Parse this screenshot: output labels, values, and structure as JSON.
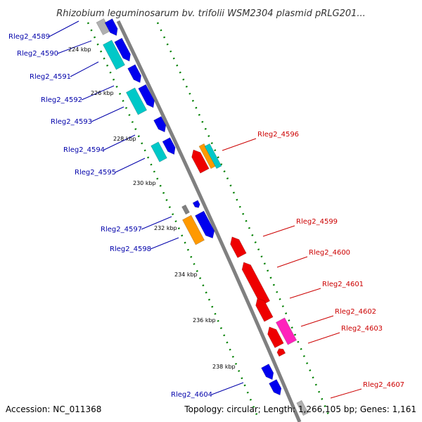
{
  "title": "Rhizobium leguminosarum bv. trifolii WSM2304 plasmid pRLG201...",
  "footer": {
    "accession": "Accession: NC_011368",
    "topology": "Topology: circular; Length: 1,266,105 bp; Genes: 1,161"
  },
  "colors": {
    "backbone": "#808080",
    "dotted_track": "#008000",
    "forward_label": "#0000aa",
    "reverse_label": "#cc0000",
    "blue_gene": "#0000ee",
    "cyan_gene": "#00c8c8",
    "red_gene": "#ee0000",
    "orange_gene": "#ff9900",
    "magenta_gene": "#ff22bb",
    "gray_gene": "#b0b0b0"
  },
  "ticks": [
    "224 kbp",
    "226 kbp",
    "228 kbp",
    "230 kbp",
    "232 kbp",
    "234 kbp",
    "236 kbp",
    "238 kbp"
  ],
  "forward_labels": [
    "Rleg2_4589",
    "Rleg2_4590",
    "Rleg2_4591",
    "Rleg2_4592",
    "Rleg2_4593",
    "Rleg2_4594",
    "Rleg2_4595",
    "Rleg2_4597",
    "Rleg2_4598",
    "Rleg2_4604"
  ],
  "reverse_labels": [
    "Rleg2_4596",
    "Rleg2_4599",
    "Rleg2_4600",
    "Rleg2_4601",
    "Rleg2_4602",
    "Rleg2_4603",
    "Rleg2_4607"
  ]
}
